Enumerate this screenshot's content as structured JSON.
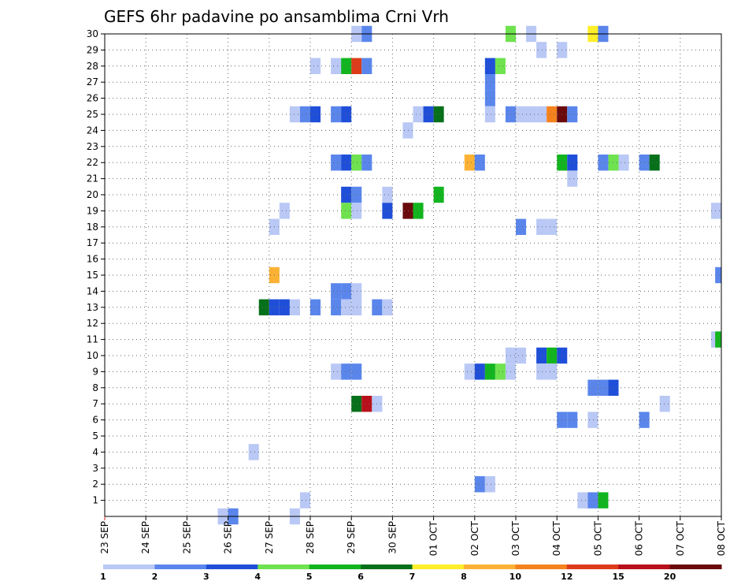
{
  "chart_data": {
    "type": "heatmap",
    "title": "GEFS 6hr padavine po ansamblima Crni Vrh",
    "xlabel": "",
    "ylabel": "",
    "x_tick_labels": [
      "23 SEP",
      "24 SEP",
      "25 SEP",
      "26 SEP",
      "27 SEP",
      "28 SEP",
      "29 SEP",
      "30 SEP",
      "01 OCT",
      "02 OCT",
      "03 OCT",
      "04 OCT",
      "05 OCT",
      "06 OCT",
      "07 OCT",
      "08 OCT"
    ],
    "x_unit": "6-hour step",
    "x_range": [
      0,
      60
    ],
    "y_tick_labels": [
      "1",
      "2",
      "3",
      "4",
      "5",
      "6",
      "7",
      "8",
      "9",
      "10",
      "11",
      "12",
      "13",
      "14",
      "15",
      "16",
      "17",
      "18",
      "19",
      "20",
      "21",
      "22",
      "23",
      "24",
      "25",
      "26",
      "27",
      "28",
      "29",
      "30"
    ],
    "y_range": [
      0,
      30
    ],
    "colorbar": {
      "ticks": [
        "1",
        "2",
        "3",
        "4",
        "5",
        "6",
        "7",
        "8",
        "10",
        "12",
        "15",
        "20"
      ],
      "colors": [
        "#b9c8f5",
        "#5a86ec",
        "#1f4fd9",
        "#6fe24f",
        "#12b51f",
        "#07701a",
        "#ffee2a",
        "#fbb234",
        "#f5821c",
        "#dd3c1a",
        "#b8111b",
        "#6a0a0c"
      ]
    },
    "cells": [
      {
        "member": 30,
        "step": 24.5,
        "cat": 1
      },
      {
        "member": 30,
        "step": 25.5,
        "cat": 2
      },
      {
        "member": 30,
        "step": 39.5,
        "cat": 4
      },
      {
        "member": 30,
        "step": 41.5,
        "cat": 1
      },
      {
        "member": 30,
        "step": 47.5,
        "cat": 7
      },
      {
        "member": 30,
        "step": 48.5,
        "cat": 2
      },
      {
        "member": 29,
        "step": 42.5,
        "cat": 1
      },
      {
        "member": 29,
        "step": 44.5,
        "cat": 1
      },
      {
        "member": 28,
        "step": 20.5,
        "cat": 1
      },
      {
        "member": 28,
        "step": 22.5,
        "cat": 1
      },
      {
        "member": 28,
        "step": 23.5,
        "cat": 5
      },
      {
        "member": 28,
        "step": 24.5,
        "cat": 10
      },
      {
        "member": 28,
        "step": 25.5,
        "cat": 2
      },
      {
        "member": 28,
        "step": 37.5,
        "cat": 3
      },
      {
        "member": 28,
        "step": 38.5,
        "cat": 4
      },
      {
        "member": 27,
        "step": 37.5,
        "cat": 2
      },
      {
        "member": 26,
        "step": 37.5,
        "cat": 2
      },
      {
        "member": 25,
        "step": 18.5,
        "cat": 1
      },
      {
        "member": 25,
        "step": 19.5,
        "cat": 2
      },
      {
        "member": 25,
        "step": 20.5,
        "cat": 3
      },
      {
        "member": 25,
        "step": 22.5,
        "cat": 2
      },
      {
        "member": 25,
        "step": 23.5,
        "cat": 3
      },
      {
        "member": 25,
        "step": 30.5,
        "cat": 1
      },
      {
        "member": 25,
        "step": 31.5,
        "cat": 3
      },
      {
        "member": 25,
        "step": 32.5,
        "cat": 6
      },
      {
        "member": 25,
        "step": 37.5,
        "cat": 1
      },
      {
        "member": 25,
        "step": 39.5,
        "cat": 2
      },
      {
        "member": 25,
        "step": 40.5,
        "cat": 1
      },
      {
        "member": 25,
        "step": 41.5,
        "cat": 1
      },
      {
        "member": 25,
        "step": 42.5,
        "cat": 1
      },
      {
        "member": 25,
        "step": 43.5,
        "cat": 9
      },
      {
        "member": 25,
        "step": 44.5,
        "cat": 12
      },
      {
        "member": 25,
        "step": 45.5,
        "cat": 2
      },
      {
        "member": 24,
        "step": 29.5,
        "cat": 1
      },
      {
        "member": 22,
        "step": 22.5,
        "cat": 2
      },
      {
        "member": 22,
        "step": 23.5,
        "cat": 3
      },
      {
        "member": 22,
        "step": 24.5,
        "cat": 4
      },
      {
        "member": 22,
        "step": 25.5,
        "cat": 2
      },
      {
        "member": 22,
        "step": 35.5,
        "cat": 8
      },
      {
        "member": 22,
        "step": 36.5,
        "cat": 2
      },
      {
        "member": 22,
        "step": 44.5,
        "cat": 5
      },
      {
        "member": 22,
        "step": 45.5,
        "cat": 3
      },
      {
        "member": 22,
        "step": 48.5,
        "cat": 2
      },
      {
        "member": 22,
        "step": 49.5,
        "cat": 4
      },
      {
        "member": 22,
        "step": 50.5,
        "cat": 1
      },
      {
        "member": 22,
        "step": 52.5,
        "cat": 2
      },
      {
        "member": 22,
        "step": 53.5,
        "cat": 6
      },
      {
        "member": 21,
        "step": 45.5,
        "cat": 1
      },
      {
        "member": 20,
        "step": 23.5,
        "cat": 3
      },
      {
        "member": 20,
        "step": 24.5,
        "cat": 2
      },
      {
        "member": 20,
        "step": 27.5,
        "cat": 1
      },
      {
        "member": 20,
        "step": 32.5,
        "cat": 5
      },
      {
        "member": 19,
        "step": 17.5,
        "cat": 1
      },
      {
        "member": 19,
        "step": 23.5,
        "cat": 4
      },
      {
        "member": 19,
        "step": 24.5,
        "cat": 1
      },
      {
        "member": 19,
        "step": 27.5,
        "cat": 3
      },
      {
        "member": 19,
        "step": 29.5,
        "cat": 12
      },
      {
        "member": 19,
        "step": 30.5,
        "cat": 5
      },
      {
        "member": 19,
        "step": 59.5,
        "cat": 1
      },
      {
        "member": 18,
        "step": 16.5,
        "cat": 1
      },
      {
        "member": 18,
        "step": 40.5,
        "cat": 2
      },
      {
        "member": 18,
        "step": 42.5,
        "cat": 1
      },
      {
        "member": 18,
        "step": 43.5,
        "cat": 1
      },
      {
        "member": 15,
        "step": 16.5,
        "cat": 8
      },
      {
        "member": 15,
        "step": 59.9,
        "cat": 2
      },
      {
        "member": 14,
        "step": 22.5,
        "cat": 2
      },
      {
        "member": 14,
        "step": 23.5,
        "cat": 2
      },
      {
        "member": 14,
        "step": 24.5,
        "cat": 1
      },
      {
        "member": 13,
        "step": 15.5,
        "cat": 6
      },
      {
        "member": 13,
        "step": 16.5,
        "cat": 3
      },
      {
        "member": 13,
        "step": 17.5,
        "cat": 3
      },
      {
        "member": 13,
        "step": 18.5,
        "cat": 1
      },
      {
        "member": 13,
        "step": 20.5,
        "cat": 2
      },
      {
        "member": 13,
        "step": 22.5,
        "cat": 2
      },
      {
        "member": 13,
        "step": 23.5,
        "cat": 1
      },
      {
        "member": 13,
        "step": 24.5,
        "cat": 1
      },
      {
        "member": 13,
        "step": 26.5,
        "cat": 2
      },
      {
        "member": 13,
        "step": 27.5,
        "cat": 1
      },
      {
        "member": 11,
        "step": 59.5,
        "cat": 1
      },
      {
        "member": 11,
        "step": 59.9,
        "cat": 5
      },
      {
        "member": 10,
        "step": 39.5,
        "cat": 1
      },
      {
        "member": 10,
        "step": 40.5,
        "cat": 1
      },
      {
        "member": 10,
        "step": 42.5,
        "cat": 3
      },
      {
        "member": 10,
        "step": 43.5,
        "cat": 5
      },
      {
        "member": 10,
        "step": 44.5,
        "cat": 3
      },
      {
        "member": 9,
        "step": 22.5,
        "cat": 1
      },
      {
        "member": 9,
        "step": 23.5,
        "cat": 2
      },
      {
        "member": 9,
        "step": 24.5,
        "cat": 2
      },
      {
        "member": 9,
        "step": 35.5,
        "cat": 1
      },
      {
        "member": 9,
        "step": 36.5,
        "cat": 3
      },
      {
        "member": 9,
        "step": 37.5,
        "cat": 5
      },
      {
        "member": 9,
        "step": 38.5,
        "cat": 4
      },
      {
        "member": 9,
        "step": 39.5,
        "cat": 1
      },
      {
        "member": 9,
        "step": 42.5,
        "cat": 1
      },
      {
        "member": 9,
        "step": 43.5,
        "cat": 1
      },
      {
        "member": 8,
        "step": 47.5,
        "cat": 2
      },
      {
        "member": 8,
        "step": 48.5,
        "cat": 2
      },
      {
        "member": 8,
        "step": 49.5,
        "cat": 3
      },
      {
        "member": 7,
        "step": 24.5,
        "cat": 6
      },
      {
        "member": 7,
        "step": 25.5,
        "cat": 11
      },
      {
        "member": 7,
        "step": 26.5,
        "cat": 1
      },
      {
        "member": 7,
        "step": 54.5,
        "cat": 1
      },
      {
        "member": 6,
        "step": 44.5,
        "cat": 2
      },
      {
        "member": 6,
        "step": 45.5,
        "cat": 2
      },
      {
        "member": 6,
        "step": 47.5,
        "cat": 1
      },
      {
        "member": 6,
        "step": 52.5,
        "cat": 2
      },
      {
        "member": 4,
        "step": 14.5,
        "cat": 1
      },
      {
        "member": 2,
        "step": 36.5,
        "cat": 2
      },
      {
        "member": 2,
        "step": 37.5,
        "cat": 1
      },
      {
        "member": 1,
        "step": 19.5,
        "cat": 1
      },
      {
        "member": 1,
        "step": 46.5,
        "cat": 1
      },
      {
        "member": 1,
        "step": 47.5,
        "cat": 2
      },
      {
        "member": 1,
        "step": 48.5,
        "cat": 5
      },
      {
        "member": 0,
        "step": 11.5,
        "cat": 1
      },
      {
        "member": 0,
        "step": 12.5,
        "cat": 2
      },
      {
        "member": 0,
        "step": 18.5,
        "cat": 1
      }
    ]
  }
}
